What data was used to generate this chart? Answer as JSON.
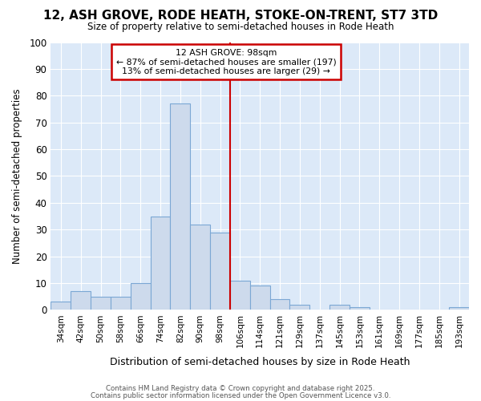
{
  "title": "12, ASH GROVE, RODE HEATH, STOKE-ON-TRENT, ST7 3TD",
  "subtitle": "Size of property relative to semi-detached houses in Rode Heath",
  "xlabel": "Distribution of semi-detached houses by size in Rode Heath",
  "ylabel": "Number of semi-detached properties",
  "categories": [
    "34sqm",
    "42sqm",
    "50sqm",
    "58sqm",
    "66sqm",
    "74sqm",
    "82sqm",
    "90sqm",
    "98sqm",
    "106sqm",
    "114sqm",
    "121sqm",
    "129sqm",
    "137sqm",
    "145sqm",
    "153sqm",
    "161sqm",
    "169sqm",
    "177sqm",
    "185sqm",
    "193sqm"
  ],
  "values": [
    3,
    7,
    5,
    5,
    10,
    35,
    77,
    32,
    29,
    11,
    9,
    4,
    2,
    0,
    2,
    1,
    0,
    0,
    0,
    0,
    1
  ],
  "bar_color": "#cddaec",
  "bar_edge_color": "#7ba7d4",
  "reference_line_x": 8,
  "reference_line_label": "12 ASH GROVE: 98sqm",
  "annotation_smaller": "← 87% of semi-detached houses are smaller (197)",
  "annotation_larger": "13% of semi-detached houses are larger (29) →",
  "box_edge_color": "#cc0000",
  "vline_color": "#cc0000",
  "ylim": [
    0,
    100
  ],
  "yticks": [
    0,
    10,
    20,
    30,
    40,
    50,
    60,
    70,
    80,
    90,
    100
  ],
  "fig_background_color": "#ffffff",
  "plot_background_color": "#dce9f8",
  "grid_color": "#ffffff",
  "footer_line1": "Contains HM Land Registry data © Crown copyright and database right 2025.",
  "footer_line2": "Contains public sector information licensed under the Open Government Licence v3.0."
}
